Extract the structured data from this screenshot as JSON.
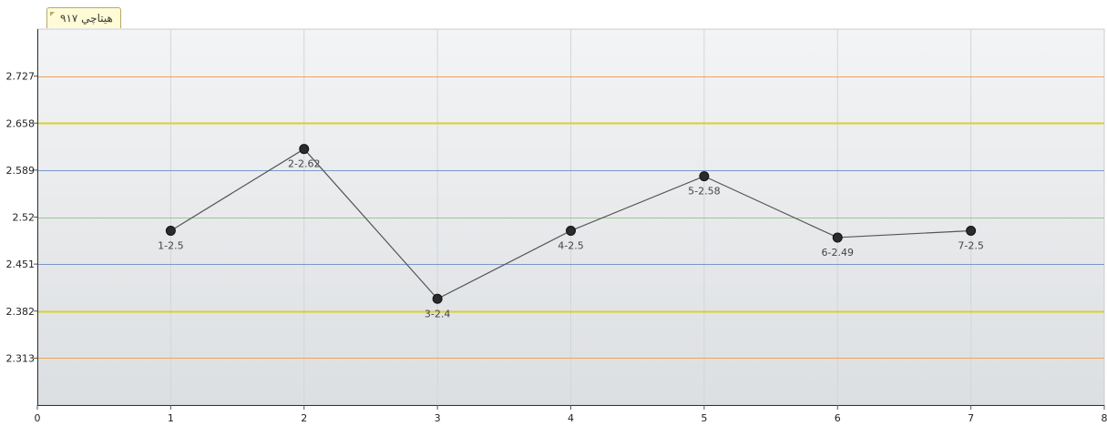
{
  "chart_title": "هيتاچي ٩١٧",
  "chart_data": {
    "type": "line",
    "title": "هيتاچي ٩١٧",
    "xlabel": "",
    "ylabel": "",
    "xlim": [
      0,
      8
    ],
    "x_ticks": [
      "0",
      "1",
      "2",
      "3",
      "4",
      "5",
      "6",
      "7",
      "8"
    ],
    "y_ticks": [
      "2.727",
      "2.658",
      "2.589",
      "2.52",
      "2.451",
      "2.382",
      "2.313"
    ],
    "reference_lines": [
      {
        "value": 2.727,
        "color": "#f0a25a"
      },
      {
        "value": 2.658,
        "color": "#d8d030"
      },
      {
        "value": 2.589,
        "color": "#7d96c8"
      },
      {
        "value": 2.52,
        "color": "#98c888"
      },
      {
        "value": 2.451,
        "color": "#7d96c8"
      },
      {
        "value": 2.382,
        "color": "#d8d030"
      },
      {
        "value": 2.313,
        "color": "#f0a25a"
      }
    ],
    "grid": true,
    "series": [
      {
        "x": [
          1,
          2,
          3,
          4,
          5,
          6,
          7
        ],
        "y": [
          2.5,
          2.62,
          2.4,
          2.5,
          2.58,
          2.49,
          2.5
        ],
        "labels": [
          "1-2.5",
          "2-2.62",
          "3-2.4",
          "4-2.5",
          "5-2.58",
          "6-2.49",
          "7-2.5"
        ],
        "color": "#555555",
        "marker_color": "#2b2b2b"
      }
    ]
  }
}
